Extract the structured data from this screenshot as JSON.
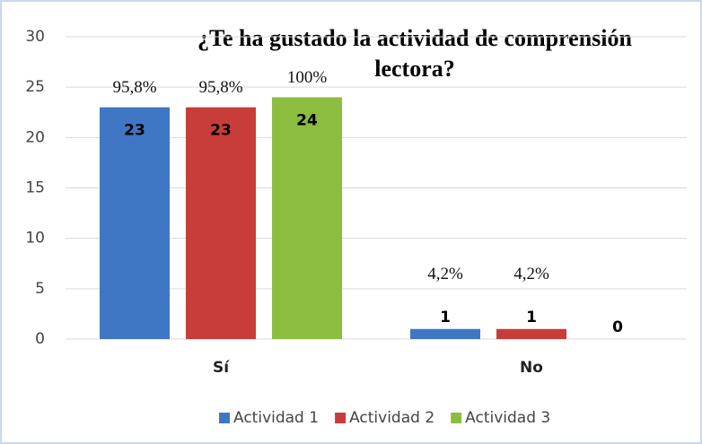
{
  "chart_data": {
    "type": "bar",
    "title": [
      "¿Te ha gustado la actividad de comprensión",
      "lectora?"
    ],
    "categories": [
      "Sí",
      "No"
    ],
    "series": [
      {
        "name": "Actividad 1",
        "color": "#3f77c4",
        "values": [
          23,
          1
        ],
        "percent_labels": [
          "95,8%",
          "4,2%"
        ]
      },
      {
        "name": "Actividad 2",
        "color": "#c83d39",
        "values": [
          23,
          1
        ],
        "percent_labels": [
          "95,8%",
          "4,2%"
        ]
      },
      {
        "name": "Actividad 3",
        "color": "#8dbd40",
        "values": [
          24,
          0
        ],
        "percent_labels": [
          "100%",
          null
        ]
      }
    ],
    "ylim": [
      0,
      30
    ],
    "yticks": [
      0,
      5,
      10,
      15,
      20,
      25,
      30
    ],
    "grid": true,
    "legend": "bottom"
  }
}
